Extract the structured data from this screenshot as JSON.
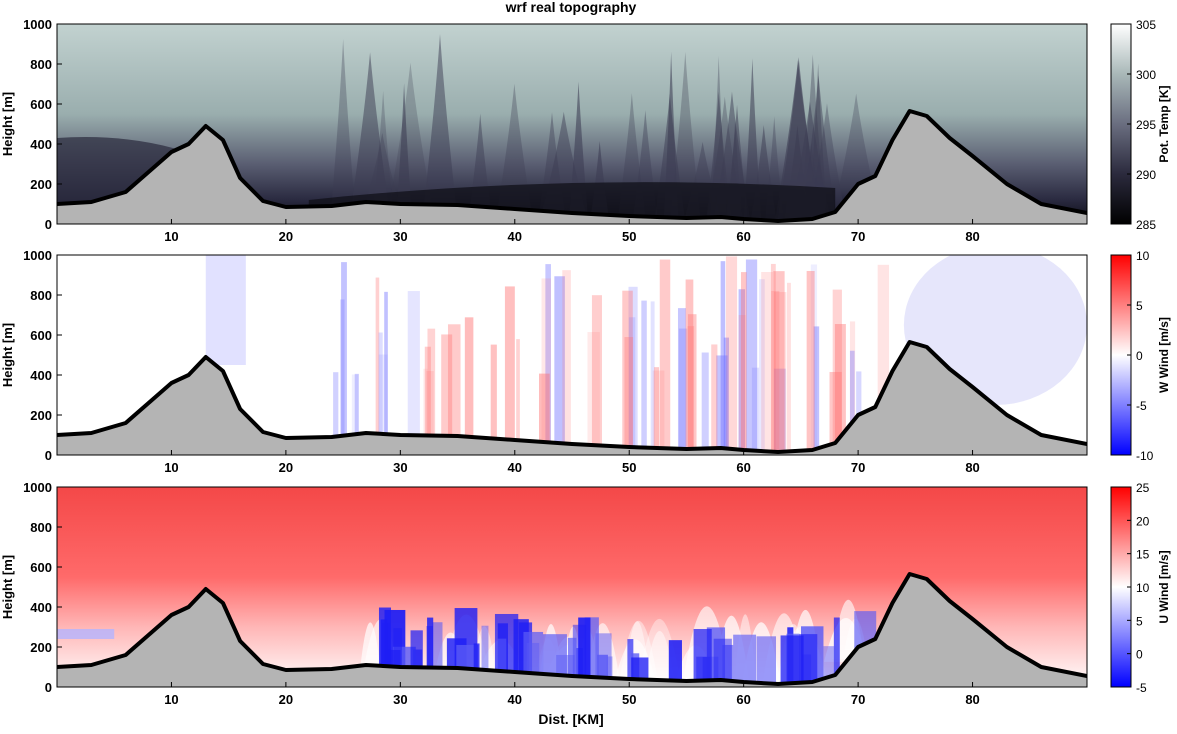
{
  "figure": {
    "title": "wrf real topography",
    "xlabel": "Dist. [KM]"
  },
  "chart_data": [
    {
      "type": "heatmap",
      "title": "wrf real topography",
      "xlabel": "",
      "ylabel": "Height [m]",
      "xlim": [
        0,
        90
      ],
      "ylim": [
        0,
        1000
      ],
      "xticks": [
        10,
        20,
        30,
        40,
        50,
        60,
        70,
        80
      ],
      "yticks": [
        0,
        200,
        400,
        600,
        800,
        1000
      ],
      "colorbar": {
        "label": "Pot. Temp [K]",
        "range": [
          285,
          305
        ],
        "ticks": [
          285,
          290,
          295,
          300,
          305
        ],
        "colors": [
          "#000000",
          "#2b2a3d",
          "#6a6e80",
          "#a9b8b8",
          "#ffffff"
        ]
      },
      "field": "potential_temperature",
      "terrain_color": "#b4b4b4"
    },
    {
      "type": "heatmap",
      "title": "",
      "xlabel": "",
      "ylabel": "Height [m]",
      "xlim": [
        0,
        90
      ],
      "ylim": [
        0,
        1000
      ],
      "xticks": [
        10,
        20,
        30,
        40,
        50,
        60,
        70,
        80
      ],
      "yticks": [
        0,
        200,
        400,
        600,
        800,
        1000
      ],
      "colorbar": {
        "label": "W Wind [m/s]",
        "range": [
          -10,
          10
        ],
        "ticks": [
          -10,
          -5,
          0,
          5,
          10
        ],
        "colors": [
          "#0000ff",
          "#ffffff",
          "#ff0000"
        ]
      },
      "field": "w_wind",
      "terrain_color": "#b4b4b4"
    },
    {
      "type": "heatmap",
      "title": "",
      "xlabel": "Dist. [KM]",
      "ylabel": "Height [m]",
      "xlim": [
        0,
        90
      ],
      "ylim": [
        0,
        1000
      ],
      "xticks": [
        10,
        20,
        30,
        40,
        50,
        60,
        70,
        80
      ],
      "yticks": [
        0,
        200,
        400,
        600,
        800,
        1000
      ],
      "colorbar": {
        "label": "U Wind [m/s]",
        "range": [
          -5,
          25
        ],
        "ticks": [
          -5,
          0,
          5,
          10,
          15,
          20,
          25
        ],
        "colors": [
          "#0000ff",
          "#ffffff",
          "#ff0000"
        ]
      },
      "field": "u_wind",
      "terrain_color": "#b4b4b4"
    }
  ],
  "terrain": {
    "x": [
      0,
      3,
      6,
      8,
      10,
      11.5,
      13,
      14.5,
      16,
      18,
      20,
      24,
      27,
      30,
      35,
      40,
      45,
      50,
      55,
      58,
      60,
      63,
      66,
      68,
      70,
      71.5,
      73,
      74.5,
      76,
      78,
      80,
      83,
      86,
      90
    ],
    "height": [
      100,
      110,
      160,
      260,
      360,
      400,
      490,
      420,
      230,
      115,
      85,
      90,
      110,
      100,
      95,
      75,
      55,
      40,
      30,
      35,
      25,
      15,
      25,
      60,
      200,
      240,
      420,
      565,
      540,
      430,
      340,
      200,
      100,
      55
    ]
  }
}
